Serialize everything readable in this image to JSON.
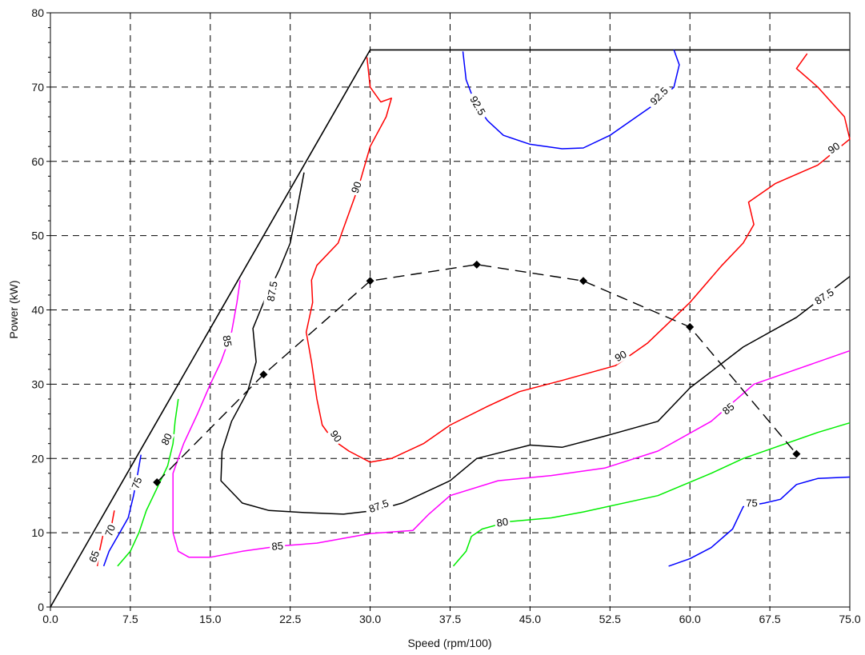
{
  "chart_data": {
    "type": "contour",
    "xlabel": "Speed (rpm/100)",
    "ylabel": "Power (kW)",
    "xlim": [
      0,
      75
    ],
    "ylim": [
      0,
      80
    ],
    "x_ticks": [
      "0.0",
      "7.5",
      "15.0",
      "22.5",
      "30.0",
      "37.5",
      "45.0",
      "52.5",
      "60.0",
      "67.5",
      "75.0"
    ],
    "y_ticks": [
      "0",
      "10",
      "20",
      "30",
      "40",
      "50",
      "60",
      "70",
      "80"
    ],
    "grid": true,
    "envelope": [
      [
        0,
        0
      ],
      [
        30,
        75
      ],
      [
        75,
        75
      ]
    ],
    "optimal_points": [
      [
        10,
        16.8
      ],
      [
        20,
        31.3
      ],
      [
        30,
        43.9
      ],
      [
        40,
        46.1
      ],
      [
        50,
        43.9
      ],
      [
        60,
        37.7
      ],
      [
        70,
        20.6
      ]
    ],
    "contours": [
      {
        "level": "65",
        "color": "#ff0000",
        "segments": [
          [
            [
              4.4,
              5.5
            ],
            [
              4.6,
              7.5
            ],
            [
              4.9,
              9.5
            ],
            [
              5.2,
              11
            ]
          ]
        ],
        "labels": [
          {
            "text": "65",
            "at": [
              4.1,
              6.8
            ],
            "angle": -70
          }
        ]
      },
      {
        "level": "70",
        "color": "#ff0000",
        "segments": [
          [
            [
              5.7,
              10.3
            ],
            [
              5.8,
              11.5
            ],
            [
              6.0,
              13.0
            ]
          ]
        ],
        "labels": [
          {
            "text": "70",
            "at": [
              5.6,
              10.3
            ],
            "angle": -70
          }
        ]
      },
      {
        "level": "75",
        "color": "#0000ff",
        "segments": [
          [
            [
              5.0,
              5.5
            ],
            [
              5.5,
              7.5
            ],
            [
              6.5,
              10
            ],
            [
              7.3,
              12
            ],
            [
              7.8,
              15
            ],
            [
              8.2,
              18
            ],
            [
              8.5,
              20.5
            ]
          ],
          [
            [
              58,
              5.5
            ],
            [
              60,
              6.5
            ],
            [
              62,
              8
            ],
            [
              64,
              10.5
            ],
            [
              65,
              13.5
            ],
            [
              67,
              14
            ],
            [
              68.5,
              14.5
            ],
            [
              70,
              16.5
            ],
            [
              72,
              17.3
            ],
            [
              75,
              17.5
            ]
          ]
        ],
        "labels": [
          {
            "text": "75",
            "at": [
              8.1,
              16.7
            ],
            "angle": -70
          },
          {
            "text": "75",
            "at": [
              65.8,
              14.0
            ],
            "angle": 0
          }
        ]
      },
      {
        "level": "80",
        "color": "#00ee00",
        "segments": [
          [
            [
              6.3,
              5.5
            ],
            [
              7.5,
              7.5
            ],
            [
              8.3,
              10
            ],
            [
              9.0,
              13
            ],
            [
              10,
              16
            ],
            [
              11,
              19
            ],
            [
              11.5,
              22
            ],
            [
              11.7,
              25
            ],
            [
              12,
              28
            ]
          ],
          [
            [
              37.8,
              5.5
            ],
            [
              39,
              7.5
            ],
            [
              39.5,
              9.5
            ],
            [
              40.5,
              10.5
            ],
            [
              43,
              11.5
            ],
            [
              47,
              12
            ],
            [
              50,
              12.8
            ],
            [
              57,
              15
            ],
            [
              62,
              18
            ],
            [
              65,
              20
            ],
            [
              68,
              21.5
            ],
            [
              72,
              23.5
            ],
            [
              75,
              24.8
            ]
          ]
        ],
        "labels": [
          {
            "text": "80",
            "at": [
              10.9,
              22.6
            ],
            "angle": -65
          },
          {
            "text": "80",
            "at": [
              42.4,
              11.4
            ],
            "angle": -10
          }
        ]
      },
      {
        "level": "85",
        "color": "#ff00ff",
        "segments": [
          [
            [
              17.8,
              44
            ],
            [
              17.5,
              41
            ],
            [
              17,
              37
            ],
            [
              16,
              33
            ],
            [
              15,
              30
            ],
            [
              13.8,
              26
            ],
            [
              12.5,
              22
            ],
            [
              11.5,
              18
            ],
            [
              11.5,
              14
            ],
            [
              11.5,
              10
            ],
            [
              12,
              7.5
            ],
            [
              13,
              6.7
            ],
            [
              15,
              6.7
            ],
            [
              18,
              7.5
            ],
            [
              21.5,
              8.2
            ],
            [
              25,
              8.6
            ],
            [
              30,
              9.9
            ],
            [
              34,
              10.3
            ],
            [
              35.5,
              12.5
            ],
            [
              37.5,
              15
            ],
            [
              42,
              17
            ],
            [
              47,
              17.7
            ],
            [
              52,
              18.7
            ],
            [
              57,
              21
            ],
            [
              62,
              25
            ],
            [
              66,
              30
            ],
            [
              70,
              32
            ],
            [
              75,
              34.5
            ]
          ]
        ],
        "labels": [
          {
            "text": "85",
            "at": [
              16.6,
              35.8
            ],
            "angle": 80
          },
          {
            "text": "85",
            "at": [
              21.3,
              8.2
            ],
            "angle": -5
          },
          {
            "text": "85",
            "at": [
              63.6,
              26.7
            ],
            "angle": -40
          }
        ]
      },
      {
        "level": "87.5",
        "color": "#000000",
        "segments": [
          [
            [
              23.8,
              58.5
            ],
            [
              23.2,
              54
            ],
            [
              22.5,
              49
            ],
            [
              21.5,
              45.5
            ],
            [
              20,
              41
            ],
            [
              19,
              37.5
            ],
            [
              19.3,
              33
            ],
            [
              18.5,
              29
            ],
            [
              17,
              25
            ],
            [
              16.1,
              21
            ],
            [
              16,
              17
            ],
            [
              18,
              14
            ],
            [
              20.5,
              13
            ],
            [
              24,
              12.7
            ],
            [
              27.5,
              12.5
            ],
            [
              30.5,
              13
            ],
            [
              33,
              14
            ],
            [
              37.5,
              17
            ],
            [
              40,
              20
            ],
            [
              45,
              21.8
            ],
            [
              48,
              21.5
            ],
            [
              52,
              23
            ],
            [
              57,
              25
            ],
            [
              60,
              29.5
            ],
            [
              65,
              35
            ],
            [
              70,
              39
            ],
            [
              75,
              44.5
            ]
          ]
        ],
        "labels": [
          {
            "text": "87.5",
            "at": [
              20.8,
              42.5
            ],
            "angle": -80
          },
          {
            "text": "87.5",
            "at": [
              30.8,
              13.6
            ],
            "angle": -20
          },
          {
            "text": "87.5",
            "at": [
              72.6,
              41.8
            ],
            "angle": -33
          }
        ]
      },
      {
        "level": "90",
        "color": "#ff0000",
        "segments": [
          [
            [
              29.7,
              74
            ],
            [
              30,
              70
            ],
            [
              31,
              68
            ],
            [
              32,
              68.5
            ],
            [
              31.5,
              66
            ],
            [
              30,
              62
            ],
            [
              29,
              57
            ],
            [
              28,
              53
            ],
            [
              27,
              49
            ],
            [
              25,
              46
            ],
            [
              24.5,
              44
            ],
            [
              24.6,
              41
            ],
            [
              24,
              37
            ],
            [
              24.5,
              33
            ],
            [
              25,
              28
            ],
            [
              25.5,
              24.5
            ],
            [
              26.5,
              22.5
            ],
            [
              28,
              21
            ],
            [
              30,
              19.5
            ],
            [
              32,
              20
            ],
            [
              35,
              22
            ],
            [
              37.5,
              24.5
            ],
            [
              41,
              27
            ],
            [
              44,
              29
            ],
            [
              48,
              30.5
            ],
            [
              53,
              32.5
            ],
            [
              56,
              35.5
            ],
            [
              60,
              41
            ],
            [
              63,
              46
            ],
            [
              65,
              49
            ],
            [
              66,
              51.5
            ],
            [
              65.5,
              54.5
            ],
            [
              68,
              57
            ],
            [
              72,
              59.5
            ],
            [
              75,
              63
            ],
            [
              74.5,
              66
            ],
            [
              72,
              70
            ],
            [
              70,
              72.5
            ],
            [
              71,
              74.5
            ]
          ]
        ],
        "labels": [
          {
            "text": "90",
            "at": [
              28.7,
              56.5
            ],
            "angle": -70
          },
          {
            "text": "90",
            "at": [
              26.8,
              23.0
            ],
            "angle": 55
          },
          {
            "text": "90",
            "at": [
              53.5,
              33.8
            ],
            "angle": -30
          },
          {
            "text": "90",
            "at": [
              73.5,
              61.8
            ],
            "angle": -35
          }
        ]
      },
      {
        "level": "92.5",
        "color": "#0000ff",
        "segments": [
          [
            [
              38.7,
              74.8
            ],
            [
              39,
              71
            ],
            [
              39.8,
              68
            ],
            [
              41,
              65.5
            ],
            [
              42.5,
              63.5
            ],
            [
              45,
              62.3
            ],
            [
              48,
              61.7
            ],
            [
              50,
              61.8
            ],
            [
              52.5,
              63.5
            ],
            [
              55,
              66
            ],
            [
              57,
              68
            ],
            [
              58.5,
              70
            ],
            [
              59,
              73
            ],
            [
              58.5,
              75
            ]
          ]
        ],
        "labels": [
          {
            "text": "92.5",
            "at": [
              40.1,
              67.5
            ],
            "angle": 60
          },
          {
            "text": "92.5",
            "at": [
              57.1,
              68.8
            ],
            "angle": -45
          }
        ]
      }
    ]
  }
}
